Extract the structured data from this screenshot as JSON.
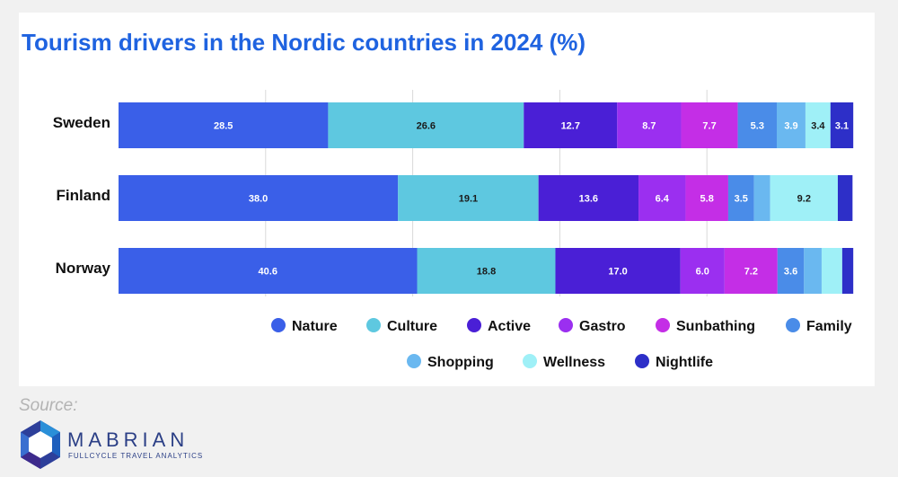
{
  "colors": {
    "title": "#1f63e0",
    "Nature": "#3a5fe8",
    "Culture": "#5ec8e0",
    "Active": "#4a1fd6",
    "Gastro": "#9b2ff0",
    "Sunbathing": "#c42ee6",
    "Family": "#4a8ce8",
    "Shopping": "#6ab8f0",
    "Wellness": "#9ff0f7",
    "Nightlife": "#2d2fc8"
  },
  "chart_data": {
    "type": "bar",
    "orientation": "horizontal",
    "stacked": true,
    "title": "Tourism drivers in the Nordic countries in 2024 (%)",
    "categories": [
      "Sweden",
      "Finland",
      "Norway"
    ],
    "xlim": [
      0,
      100
    ],
    "grid": true,
    "legend_position": "bottom",
    "series": [
      {
        "name": "Nature",
        "values": [
          28.5,
          38.0,
          40.6
        ],
        "labels": [
          "28.5",
          "38.0",
          "40.6"
        ]
      },
      {
        "name": "Culture",
        "values": [
          26.6,
          19.1,
          18.8
        ],
        "labels": [
          "26.6",
          "19.1",
          "18.8"
        ]
      },
      {
        "name": "Active",
        "values": [
          12.7,
          13.6,
          17.0
        ],
        "labels": [
          "12.7",
          "13.6",
          "17.0"
        ]
      },
      {
        "name": "Gastro",
        "values": [
          8.7,
          6.4,
          6.0
        ],
        "labels": [
          "8.7",
          "6.4",
          "6.0"
        ]
      },
      {
        "name": "Sunbathing",
        "values": [
          7.7,
          5.8,
          7.2
        ],
        "labels": [
          "7.7",
          "5.8",
          "7.2"
        ]
      },
      {
        "name": "Family",
        "values": [
          5.3,
          3.5,
          3.6
        ],
        "labels": [
          "5.3",
          "3.5",
          "3.6"
        ]
      },
      {
        "name": "Shopping",
        "values": [
          3.9,
          2.2,
          2.4
        ],
        "labels": [
          "3.9",
          "",
          ""
        ]
      },
      {
        "name": "Wellness",
        "values": [
          3.4,
          9.2,
          2.8
        ],
        "labels": [
          "3.4",
          "9.2",
          ""
        ]
      },
      {
        "name": "Nightlife",
        "values": [
          3.1,
          2.0,
          1.5
        ],
        "labels": [
          "3.1",
          "",
          ""
        ]
      }
    ]
  },
  "footer": {
    "source_label": "Source:",
    "brand_name": "MABRIAN",
    "brand_tagline": "FULLCYCLE TRAVEL ANALYTICS"
  }
}
